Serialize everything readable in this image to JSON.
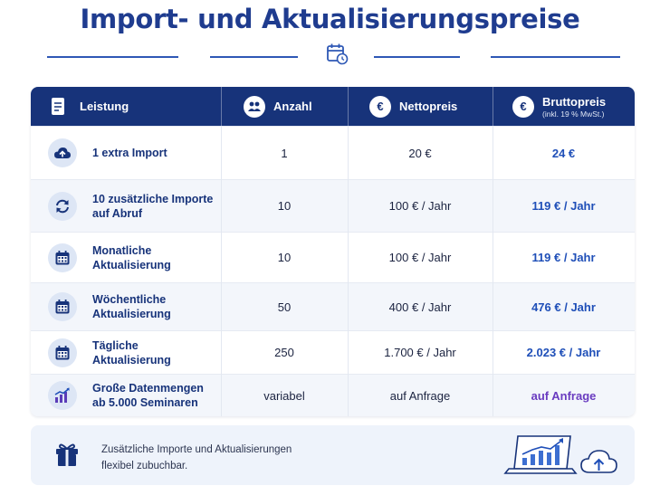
{
  "title": "Import- und Aktualisierungspreise",
  "header": {
    "col_service": "Leistung",
    "col_quantity": "Anzahl",
    "col_net": "Nettopreis",
    "col_gross": "Bruttopreis",
    "col_gross_sub": "(inkl. 19 % MwSt.)",
    "euro_symbol": "€"
  },
  "rows": [
    {
      "icon": "cloud-upload-icon",
      "label": "1 extra Import",
      "quantity": "1",
      "net": "20 €",
      "gross": "24 €"
    },
    {
      "icon": "refresh-icon",
      "label": "10 zusätzliche Importe\nauf Abruf",
      "quantity": "10",
      "net": "100 € / Jahr",
      "gross": "119 € / Jahr"
    },
    {
      "icon": "calendar-icon",
      "label": "Monatliche\nAktualisierung",
      "quantity": "10",
      "net": "100 € / Jahr",
      "gross": "119 € / Jahr"
    },
    {
      "icon": "calendar-icon",
      "label": "Wöchentliche\nAktualisierung",
      "quantity": "50",
      "net": "400 € / Jahr",
      "gross": "476 € / Jahr"
    },
    {
      "icon": "calendar-icon",
      "label": "Tägliche\nAktualisierung",
      "quantity": "250",
      "net": "1.700 € / Jahr",
      "gross": "2.023 € / Jahr"
    },
    {
      "icon": "bar-chart-icon",
      "label": "Große Datenmengen\nab 5.000 Seminaren",
      "quantity": "variabel",
      "net": "auf Anfrage",
      "gross": "auf Anfrage"
    }
  ],
  "note": {
    "text_line1": "Zusätzliche Importe und Aktualisierungen",
    "text_line2": "flexibel zubuchbar."
  },
  "colors": {
    "brand": "#1f3c8f",
    "header_bg": "#17337a",
    "gross_price": "#1f4fb8",
    "on_request": "#6a3cc0"
  }
}
